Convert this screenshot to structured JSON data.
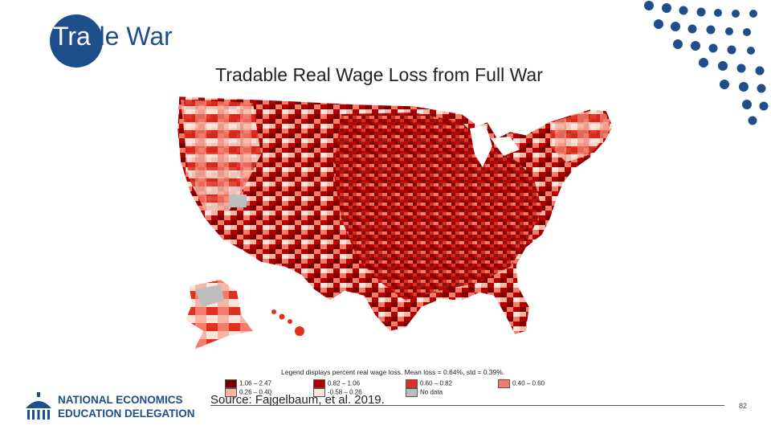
{
  "slide": {
    "title_part1": "Tra",
    "title_part2": "de War",
    "map_title": "Tradable Real Wage Loss from Full War",
    "source": "Source:  Fajgelbaum, et al. 2019.",
    "page_number": "82"
  },
  "legend": {
    "title": "Legend displays percent real wage loss. Mean loss = 0.64%, std = 0.39%.",
    "items": [
      {
        "label": "1.06 – 2.47",
        "color": "#7a0000"
      },
      {
        "label": "0.82 – 1.06",
        "color": "#b30000"
      },
      {
        "label": "0.60 – 0.82",
        "color": "#e03020"
      },
      {
        "label": "0.40 – 0.60",
        "color": "#f47c6a"
      },
      {
        "label": "0.26 – 0.40",
        "color": "#f9b5a3"
      },
      {
        "label": "-0.58 – 0.26",
        "color": "#fde4da"
      },
      {
        "label": "No data",
        "color": "#bdbdbd"
      }
    ]
  },
  "logo": {
    "line1": "NATIONAL ECONOMICS",
    "line2": "EDUCATION DELEGATION"
  },
  "colors": {
    "brand_blue": "#1f4e8c"
  }
}
